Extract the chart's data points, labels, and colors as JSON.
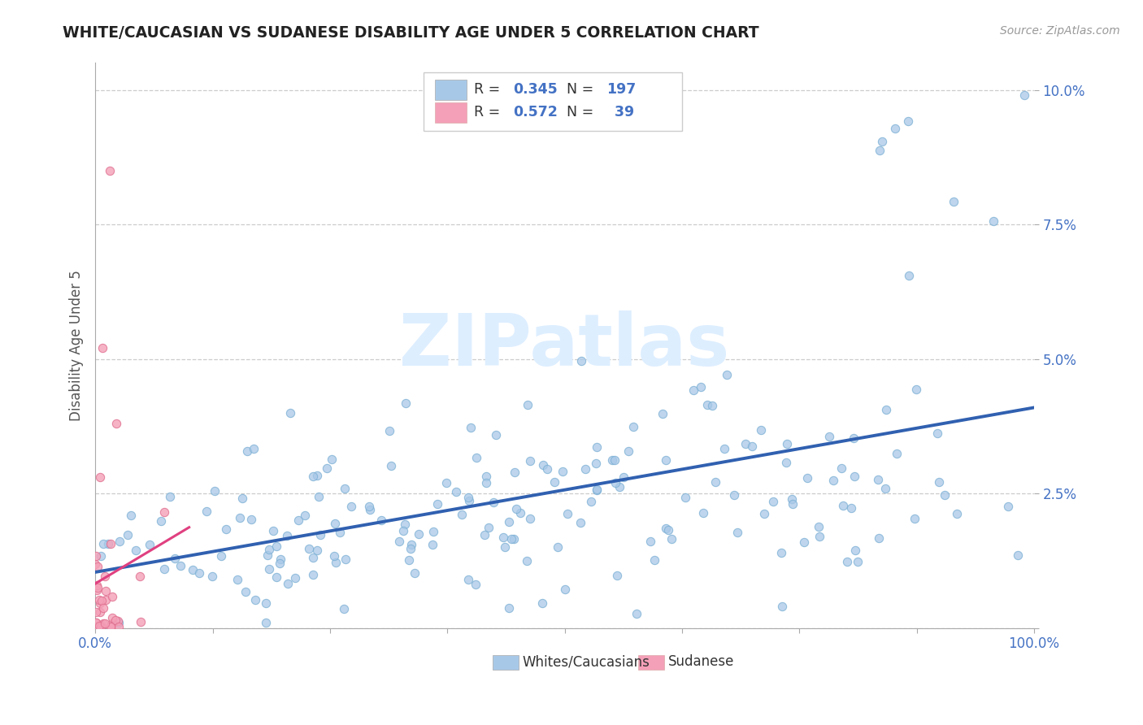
{
  "title": "WHITE/CAUCASIAN VS SUDANESE DISABILITY AGE UNDER 5 CORRELATION CHART",
  "source": "Source: ZipAtlas.com",
  "ylabel": "Disability Age Under 5",
  "blue_R": 0.345,
  "blue_N": 197,
  "pink_R": 0.572,
  "pink_N": 39,
  "blue_color": "#a8c8e8",
  "pink_color": "#f4a0b8",
  "blue_line_color": "#3060b0",
  "pink_line_color": "#e04080",
  "legend_blue_label": "Whites/Caucasians",
  "legend_pink_label": "Sudanese",
  "background_color": "#ffffff",
  "grid_color": "#cccccc",
  "watermark_color": "#ddeeff",
  "tick_color": "#4472c4",
  "title_color": "#222222",
  "ylabel_color": "#555555"
}
